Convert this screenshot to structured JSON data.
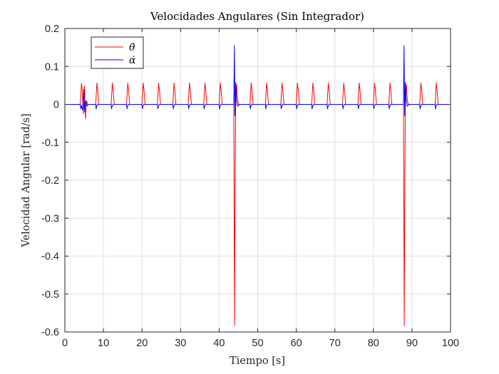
{
  "chart_data": {
    "type": "line",
    "title": "Velocidades Angulares (Sin Integrador)",
    "xlabel": "Tiempo [s]",
    "ylabel": "Velocidad Angular [rad/s]",
    "xlim": [
      0,
      100
    ],
    "ylim": [
      -0.6,
      0.2
    ],
    "xticks": [
      0,
      10,
      20,
      30,
      40,
      50,
      60,
      70,
      80,
      90,
      100
    ],
    "yticks": [
      -0.6,
      -0.5,
      -0.4,
      -0.3,
      -0.2,
      -0.1,
      0,
      0.1,
      0.2
    ],
    "xtick_labels": [
      "0",
      "10",
      "20",
      "30",
      "40",
      "50",
      "60",
      "70",
      "80",
      "90",
      "100"
    ],
    "ytick_labels": [
      "-0.6",
      "-0.5",
      "-0.4",
      "-0.3",
      "-0.2",
      "-0.1",
      "0",
      "0.1",
      "0.2"
    ],
    "grid": true,
    "legend_position": "top-left",
    "series": [
      {
        "name": "θ̇",
        "color": "#ff0000",
        "x": [
          0,
          4.0,
          4.3,
          4.5,
          4.8,
          5.1,
          5.35,
          5.6,
          5.9,
          6.2,
          8.0,
          8.3,
          8.5,
          8.8,
          9.1,
          12.0,
          12.3,
          12.5,
          12.8,
          13.1,
          16.0,
          16.3,
          16.5,
          16.8,
          17.1,
          20.0,
          20.3,
          20.5,
          20.8,
          21.1,
          24.0,
          24.3,
          24.5,
          24.8,
          25.1,
          28.0,
          28.3,
          28.5,
          28.8,
          29.1,
          32.0,
          32.3,
          32.5,
          32.8,
          33.1,
          36.0,
          36.3,
          36.5,
          36.8,
          37.1,
          40.0,
          40.3,
          40.5,
          40.8,
          41.1,
          43.8,
          44.0,
          44.15,
          44.3,
          44.55,
          44.8,
          45.1,
          48.0,
          48.3,
          48.5,
          48.8,
          49.1,
          52.0,
          52.3,
          52.5,
          52.8,
          53.1,
          56.0,
          56.3,
          56.5,
          56.8,
          57.1,
          60.0,
          60.3,
          60.5,
          60.8,
          61.1,
          64.0,
          64.3,
          64.5,
          64.8,
          65.1,
          68.0,
          68.3,
          68.5,
          68.8,
          69.1,
          72.0,
          72.3,
          72.5,
          72.8,
          73.1,
          76.0,
          76.3,
          76.5,
          76.8,
          77.1,
          80.0,
          80.3,
          80.5,
          80.8,
          81.1,
          84.0,
          84.3,
          84.5,
          84.8,
          85.1,
          87.8,
          88.0,
          88.15,
          88.3,
          88.55,
          88.8,
          89.1,
          92.0,
          92.3,
          92.5,
          92.8,
          93.1,
          96.0,
          96.3,
          96.5,
          96.8,
          97.1,
          100
        ],
        "y": [
          0,
          0,
          0.055,
          0.04,
          -0.025,
          0.048,
          -0.038,
          0.01,
          0,
          0,
          0,
          0.056,
          0.04,
          0,
          0,
          0,
          0.056,
          0.04,
          0,
          0,
          0,
          0.056,
          0.04,
          0,
          0,
          0,
          0.056,
          0.04,
          0,
          0,
          0,
          0.056,
          0.04,
          0,
          0,
          0,
          0.056,
          0.04,
          0,
          0,
          0,
          0.056,
          0.04,
          0,
          0,
          0,
          0.056,
          0.04,
          0,
          0,
          0,
          0.056,
          0.04,
          0,
          0,
          0,
          -0.583,
          -0.2,
          0.01,
          0.052,
          0.01,
          0,
          0,
          0.056,
          0.04,
          0,
          0,
          0,
          0.056,
          0.04,
          0,
          0,
          0,
          0.056,
          0.04,
          0,
          0,
          0,
          0.056,
          0.04,
          0,
          0,
          0,
          0.056,
          0.04,
          0,
          0,
          0,
          0.056,
          0.04,
          0,
          0,
          0,
          0.056,
          0.04,
          0,
          0,
          0,
          0.056,
          0.04,
          0,
          0,
          0,
          0.056,
          0.04,
          0,
          0,
          0,
          0.056,
          0.04,
          0,
          0,
          0,
          -0.583,
          -0.2,
          0.01,
          0.052,
          0.01,
          0,
          0,
          0.056,
          0.04,
          0,
          0,
          0,
          0.056,
          0.04,
          0,
          0,
          0
        ]
      },
      {
        "name": "α̇",
        "color": "#0000ff",
        "x": [
          0,
          4.0,
          4.1,
          4.3,
          4.6,
          4.9,
          5.15,
          5.4,
          5.7,
          6.0,
          8.0,
          8.1,
          8.3,
          8.6,
          12.0,
          12.1,
          12.3,
          12.6,
          16.0,
          16.1,
          16.3,
          16.6,
          20.0,
          20.1,
          20.3,
          20.6,
          24.0,
          24.1,
          24.3,
          24.6,
          28.0,
          28.1,
          28.3,
          28.6,
          32.0,
          32.1,
          32.3,
          32.6,
          36.0,
          36.1,
          36.3,
          36.6,
          40.0,
          40.1,
          40.3,
          40.6,
          43.8,
          43.95,
          44.1,
          44.3,
          44.5,
          44.8,
          45.3,
          48.0,
          48.1,
          48.3,
          48.6,
          52.0,
          52.1,
          52.3,
          52.6,
          56.0,
          56.1,
          56.3,
          56.6,
          60.0,
          60.1,
          60.3,
          60.6,
          64.0,
          64.1,
          64.3,
          64.6,
          68.0,
          68.1,
          68.3,
          68.6,
          72.0,
          72.1,
          72.3,
          72.6,
          76.0,
          76.1,
          76.3,
          76.6,
          80.0,
          80.1,
          80.3,
          80.6,
          84.0,
          84.1,
          84.3,
          84.6,
          87.8,
          87.95,
          88.1,
          88.3,
          88.5,
          88.8,
          89.3,
          92.0,
          92.1,
          92.3,
          92.6,
          96.0,
          96.1,
          96.3,
          96.6,
          100
        ],
        "y": [
          0,
          0,
          -0.012,
          -0.003,
          -0.015,
          0.04,
          -0.02,
          0.008,
          -0.005,
          0,
          0,
          -0.012,
          -0.003,
          0,
          0,
          -0.012,
          -0.003,
          0,
          0,
          -0.012,
          -0.003,
          0,
          0,
          -0.012,
          -0.003,
          0,
          0,
          -0.012,
          -0.003,
          0,
          0,
          -0.012,
          -0.003,
          0,
          0,
          -0.012,
          -0.003,
          0,
          0,
          -0.012,
          -0.003,
          0,
          0,
          -0.012,
          -0.003,
          0,
          0,
          0.155,
          -0.03,
          0.058,
          0.01,
          -0.005,
          0,
          0,
          -0.012,
          -0.003,
          0,
          0,
          -0.012,
          -0.003,
          0,
          0,
          -0.012,
          -0.003,
          0,
          0,
          -0.012,
          -0.003,
          0,
          0,
          -0.012,
          -0.003,
          0,
          0,
          -0.012,
          -0.003,
          0,
          0,
          -0.012,
          -0.003,
          0,
          0,
          -0.012,
          -0.003,
          0,
          0,
          -0.012,
          -0.003,
          0,
          0,
          -0.012,
          -0.003,
          0,
          0,
          0.155,
          -0.03,
          0.058,
          0.01,
          -0.005,
          0,
          0,
          -0.012,
          -0.003,
          0,
          0,
          -0.012,
          -0.003,
          0,
          0
        ]
      }
    ]
  }
}
